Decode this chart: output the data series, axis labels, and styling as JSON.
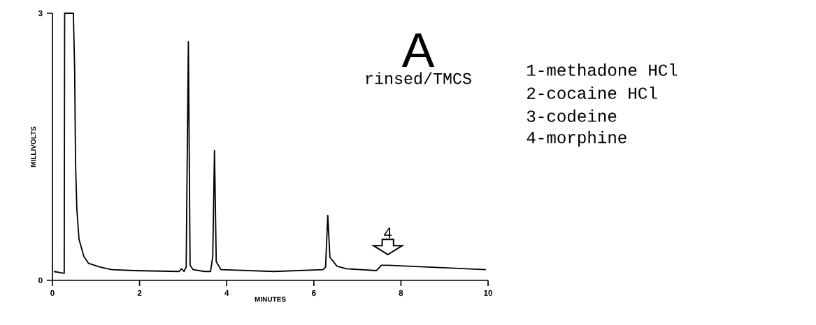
{
  "chart_data": {
    "type": "line",
    "title": "A",
    "subtitle": "rinsed/TMCS",
    "xlabel": "MINUTES",
    "ylabel": "MILLIVOLTS",
    "x": [
      0.03,
      0.27,
      0.28,
      0.35,
      0.48,
      0.51,
      0.53,
      0.56,
      0.61,
      0.72,
      0.83,
      1.09,
      1.36,
      1.89,
      2.91,
      2.96,
      3.02,
      3.07,
      3.12,
      3.16,
      3.23,
      3.49,
      3.63,
      3.68,
      3.72,
      3.76,
      3.87,
      5.09,
      6.21,
      6.27,
      6.32,
      6.37,
      6.53,
      6.75,
      7.44,
      7.55,
      7.71,
      8.61,
      9.95
    ],
    "series": [
      {
        "color": "#000000",
        "values": [
          0.1,
          0.08,
          3.0,
          3.0,
          3.0,
          2.36,
          1.32,
          0.8,
          0.46,
          0.27,
          0.19,
          0.15,
          0.12,
          0.11,
          0.1,
          0.13,
          0.1,
          0.15,
          2.68,
          0.17,
          0.12,
          0.1,
          0.1,
          0.27,
          1.46,
          0.21,
          0.12,
          0.1,
          0.12,
          0.15,
          0.73,
          0.26,
          0.16,
          0.13,
          0.11,
          0.17,
          0.17,
          0.15,
          0.12
        ]
      }
    ],
    "xlim": [
      0,
      10
    ],
    "ylim": [
      0,
      3
    ],
    "xticks": [
      0,
      2,
      4,
      6,
      8,
      10
    ],
    "yticks": [
      0,
      3
    ],
    "annotations": [
      {
        "text": "4",
        "x": 7.7,
        "y": 0.17
      },
      "1-methadone HCl",
      "2-cocaine HCl",
      "3-codeine",
      "4-morphine"
    ],
    "grid": false,
    "legend": false,
    "marker": "none",
    "line_style": "solid"
  }
}
